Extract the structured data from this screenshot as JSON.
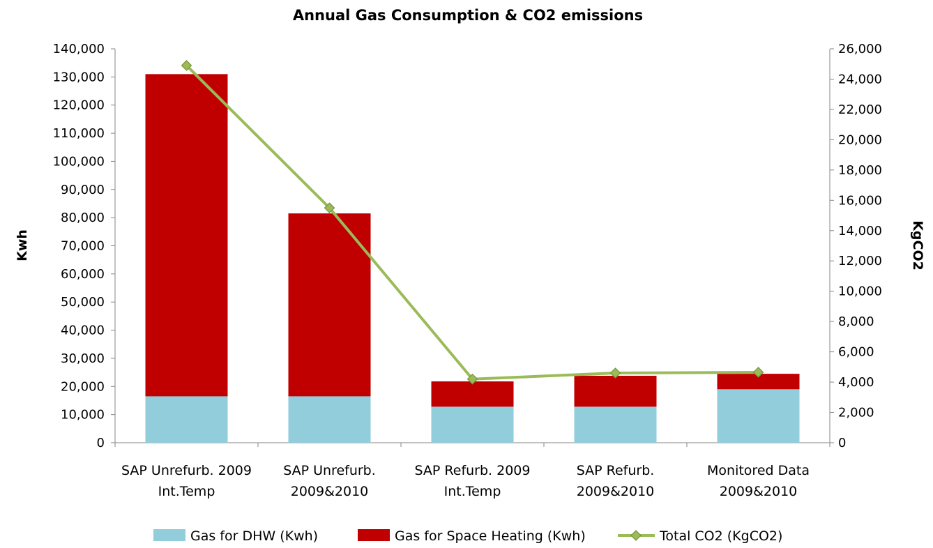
{
  "chart_data": {
    "type": "bar",
    "stacked": true,
    "title": "Annual Gas Consumption & CO2 emissions",
    "categories": [
      [
        "SAP Unrefurb. 2009",
        "Int.Temp"
      ],
      [
        "SAP Unrefurb.",
        "2009&2010"
      ],
      [
        "SAP Refurb. 2009",
        "Int.Temp"
      ],
      [
        "SAP Refurb.",
        "2009&2010"
      ],
      [
        "Monitored Data",
        "2009&2010"
      ]
    ],
    "ylabel": "Kwh",
    "y2label": "KgCO2",
    "ylim": [
      0,
      140000
    ],
    "y2lim": [
      0,
      26000
    ],
    "yticks": [
      "0",
      "10,000",
      "20,000",
      "30,000",
      "40,000",
      "50,000",
      "60,000",
      "70,000",
      "80,000",
      "90,000",
      "100,000",
      "110,000",
      "120,000",
      "130,000",
      "140,000"
    ],
    "y2ticks": [
      "0",
      "2,000",
      "4,000",
      "6,000",
      "8,000",
      "10,000",
      "12,000",
      "14,000",
      "16,000",
      "18,000",
      "20,000",
      "22,000",
      "24,000",
      "26,000"
    ],
    "series": [
      {
        "name": "Gas for DHW (Kwh)",
        "kind": "bar",
        "axis": "left",
        "color": "#92CDDC",
        "values": [
          16500,
          16500,
          12800,
          12800,
          19000
        ]
      },
      {
        "name": "Gas for Space Heating (Kwh)",
        "kind": "bar",
        "axis": "left",
        "color": "#C00000",
        "values": [
          114500,
          65000,
          9000,
          11000,
          5500
        ]
      },
      {
        "name": "Total CO2 (KgCO2)",
        "kind": "line",
        "axis": "right",
        "color": "#9BBB59",
        "marker_color": "#77933C",
        "values": [
          24900,
          15500,
          4200,
          4600,
          4650
        ]
      }
    ],
    "legend_position": "bottom",
    "grid": false
  }
}
